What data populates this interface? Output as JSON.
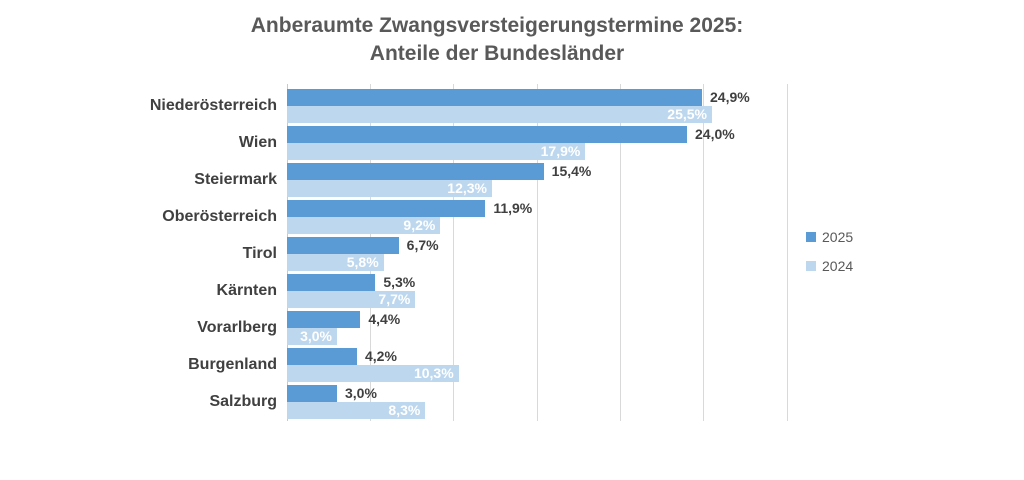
{
  "title": {
    "line1": "Anberaumte Zwangsversteigerungstermine 2025:",
    "line2": "Anteile der Bundesländer"
  },
  "legend": [
    {
      "label": "2025",
      "color": "#5b9bd5"
    },
    {
      "label": "2024",
      "color": "#bdd7ee"
    }
  ],
  "colors": {
    "series_2025": "#5b9bd5",
    "series_2024": "#bdd7ee",
    "title_text": "#595959",
    "label_text": "#404040",
    "gridline": "#d9d9d9"
  },
  "chart_data": {
    "type": "bar",
    "orientation": "horizontal",
    "title": "Anberaumte Zwangsversteigerungstermine 2025: Anteile der Bundesländer",
    "categories": [
      "Niederösterreich",
      "Wien",
      "Steiermark",
      "Oberösterreich",
      "Tirol",
      "Kärnten",
      "Vorarlberg",
      "Burgenland",
      "Salzburg"
    ],
    "series": [
      {
        "name": "2025",
        "color": "#5b9bd5",
        "values": [
          24.9,
          24.0,
          15.4,
          11.9,
          6.7,
          5.3,
          4.4,
          4.2,
          3.0
        ],
        "labels": [
          "24,9%",
          "24,0%",
          "15,4%",
          "11,9%",
          "6,7%",
          "5,3%",
          "4,4%",
          "4,2%",
          "3,0%"
        ],
        "label_position": "outside-end"
      },
      {
        "name": "2024",
        "color": "#bdd7ee",
        "values": [
          25.5,
          17.9,
          12.3,
          9.2,
          5.8,
          7.7,
          3.0,
          10.3,
          8.3
        ],
        "labels": [
          "25,5%",
          "17,9%",
          "12,3%",
          "9,2%",
          "5,8%",
          "7,7%",
          "3,0%",
          "10,3%",
          "8,3%"
        ],
        "label_position": "inside-end"
      }
    ],
    "xlabel": "",
    "ylabel": "",
    "xlim": [
      0,
      30
    ],
    "gridline_step": 5,
    "grid": true,
    "axis_tick_labels_visible": false,
    "legend_position": "right"
  }
}
